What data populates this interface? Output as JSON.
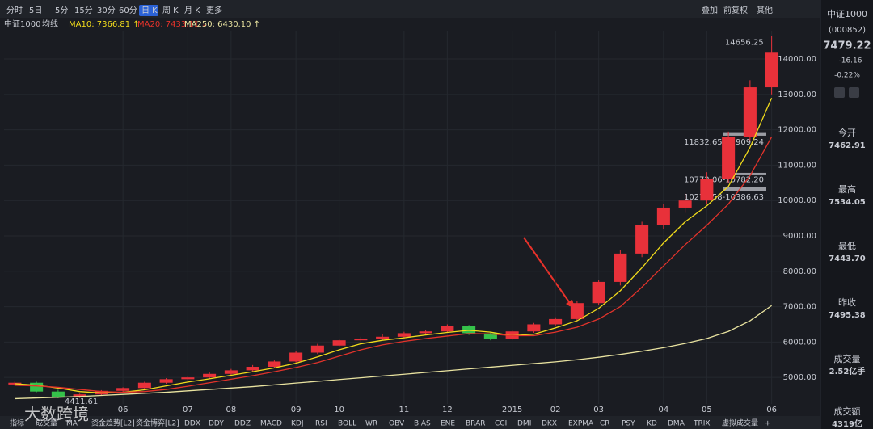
{
  "toolbar": {
    "periods": [
      "分时",
      "5日",
      "5分",
      "15分",
      "30分",
      "60分",
      "日 K",
      "周 K",
      "月 K",
      "更多"
    ],
    "right": [
      "叠加",
      "前复权",
      "其他"
    ]
  },
  "ma_bar": {
    "name": "中证1000",
    "mode": "均线"
  },
  "chart_data": {
    "type": "candlestick",
    "categories": [
      null,
      null,
      null,
      null,
      null,
      "06",
      null,
      null,
      "07",
      null,
      "08",
      null,
      null,
      "09",
      null,
      "10",
      null,
      null,
      "11",
      null,
      "12",
      null,
      null,
      "2015",
      null,
      "02",
      null,
      "03",
      null,
      null,
      "04",
      null,
      "05",
      null,
      null,
      "06"
    ],
    "open": [
      4800,
      4850,
      4600,
      4450,
      4520,
      4620,
      4700,
      4850,
      4950,
      5000,
      5100,
      5200,
      5300,
      5450,
      5700,
      5900,
      6050,
      6100,
      6150,
      6250,
      6300,
      6450,
      6250,
      6100,
      6300,
      6500,
      6650,
      7100,
      7700,
      8500,
      9300,
      9800,
      10000,
      10600,
      11800,
      13200
    ],
    "high": [
      4900,
      4880,
      4650,
      4540,
      4640,
      4720,
      4880,
      4980,
      5050,
      5140,
      5240,
      5350,
      5480,
      5740,
      5950,
      6100,
      6150,
      6220,
      6290,
      6350,
      6500,
      6480,
      6280,
      6330,
      6540,
      6700,
      7150,
      7750,
      8600,
      9400,
      9900,
      10200,
      10800,
      11950,
      13400,
      14656.25
    ],
    "low": [
      4760,
      4580,
      4411.61,
      4420,
      4490,
      4590,
      4670,
      4820,
      4910,
      4960,
      5060,
      5160,
      5260,
      5410,
      5660,
      5860,
      6000,
      6060,
      6100,
      6200,
      6260,
      6200,
      6050,
      6060,
      6260,
      6460,
      6600,
      7050,
      7600,
      8400,
      9200,
      9650,
      9900,
      10500,
      11700,
      13000
    ],
    "close": [
      4850,
      4600,
      4450,
      4520,
      4620,
      4700,
      4850,
      4950,
      5000,
      5100,
      5200,
      5300,
      5450,
      5700,
      5900,
      6050,
      6100,
      6150,
      6250,
      6300,
      6450,
      6250,
      6100,
      6300,
      6500,
      6650,
      7100,
      7700,
      8500,
      9300,
      9800,
      10000,
      10600,
      11800,
      13200,
      14200
    ],
    "up_color": "#e8313a",
    "down_color": "#35c24a",
    "lines": [
      {
        "label": "MA10: 7366.81 ↑",
        "color": "#f2dc1b",
        "values": [
          4820,
          4780,
          4700,
          4600,
          4560,
          4580,
          4650,
          4760,
          4870,
          4960,
          5060,
          5160,
          5270,
          5400,
          5580,
          5780,
          5950,
          6050,
          6120,
          6200,
          6270,
          6330,
          6280,
          6180,
          6220,
          6400,
          6600,
          6950,
          7450,
          8100,
          8800,
          9400,
          9850,
          10400,
          11500,
          12900
        ]
      },
      {
        "label": "MA20: 7433.11 ↓",
        "color": "#e2332b",
        "values": [
          4780,
          4760,
          4720,
          4660,
          4600,
          4580,
          4600,
          4660,
          4750,
          4850,
          4950,
          5050,
          5160,
          5280,
          5420,
          5600,
          5780,
          5920,
          6020,
          6100,
          6170,
          6240,
          6230,
          6180,
          6180,
          6280,
          6420,
          6650,
          7000,
          7550,
          8150,
          8750,
          9300,
          9900,
          10700,
          11800
        ]
      },
      {
        "label": "MA250: 6430.10 ↑",
        "color": "#e9e3a0",
        "values": [
          4400,
          4420,
          4440,
          4460,
          4490,
          4520,
          4550,
          4580,
          4620,
          4660,
          4700,
          4740,
          4790,
          4840,
          4890,
          4940,
          4990,
          5040,
          5090,
          5140,
          5190,
          5240,
          5290,
          5340,
          5390,
          5440,
          5500,
          5570,
          5650,
          5740,
          5840,
          5960,
          6100,
          6300,
          6600,
          7030
        ]
      }
    ],
    "gaps": [
      {
        "label": "11832.65-11909.24",
        "low": 11832.65,
        "high": 11909.24
      },
      {
        "label": "10772.06-10782.20",
        "low": 10772.06,
        "high": 10782.2
      },
      {
        "label": "10274.58-10386.63",
        "low": 10274.58,
        "high": 10386.63
      }
    ],
    "ylim": [
      4250,
      14800
    ],
    "yticks": [
      {
        "value": 5000,
        "label": "5000.00"
      },
      {
        "value": 6000,
        "label": "6000.00"
      },
      {
        "value": 7000,
        "label": "7000.00"
      },
      {
        "value": 8000,
        "label": "8000.00"
      },
      {
        "value": 9000,
        "label": "9000.00"
      },
      {
        "value": 10000,
        "label": "10000.00"
      },
      {
        "value": 11000,
        "label": "11000.00"
      },
      {
        "value": 12000,
        "label": "12000.00"
      },
      {
        "value": 13000,
        "label": "13000.00"
      },
      {
        "value": 14000,
        "label": "14000.00"
      }
    ],
    "grid": true
  },
  "sidebar": {
    "name": "中证1000",
    "code": "(000852)",
    "price": "7479.22",
    "change": "-16.16",
    "change_pct": "-0.22%",
    "stats": [
      {
        "label": "今开",
        "value": "7462.91"
      },
      {
        "label": "最高",
        "value": "7534.05"
      },
      {
        "label": "最低",
        "value": "7443.70"
      },
      {
        "label": "昨收",
        "value": "7495.38"
      },
      {
        "label": "成交量",
        "value": "2.52亿手"
      },
      {
        "label": "成交额",
        "value": "4319亿"
      }
    ]
  },
  "tabs": [
    "指标",
    "成交量",
    "MA",
    "资金趋势[L2]",
    "资金博弈[L2]",
    "DDX",
    "DDY",
    "DDZ",
    "MACD",
    "KDJ",
    "RSI",
    "BOLL",
    "WR",
    "OBV",
    "BIAS",
    "ENE",
    "BRAR",
    "CCI",
    "DMI",
    "DKX",
    "EXPMA",
    "CR",
    "PSY",
    "KD",
    "DMA",
    "TRIX",
    "虚拟成交量",
    "+"
  ],
  "watermark": "大数跨境"
}
